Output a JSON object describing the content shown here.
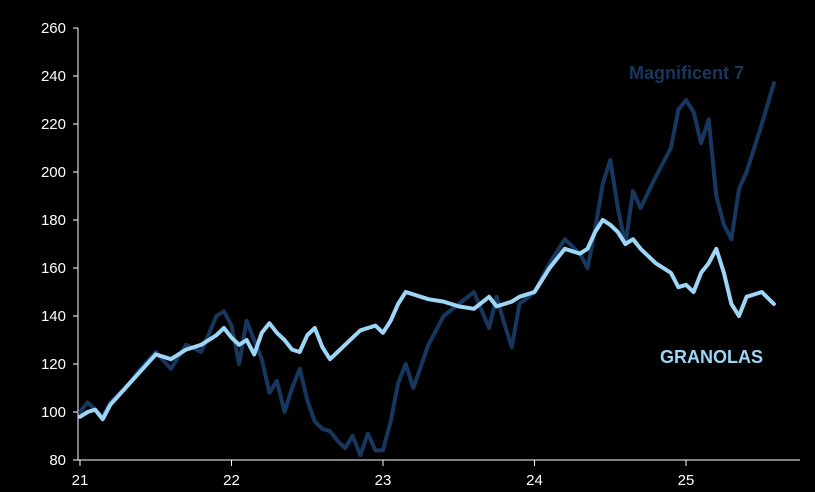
{
  "chart_data": {
    "type": "line",
    "grid": false,
    "legend": "inline labels",
    "ylim": [
      80,
      260
    ],
    "yticks": [
      80,
      100,
      120,
      140,
      160,
      180,
      200,
      220,
      240,
      260
    ],
    "xticks": [
      "21",
      "22",
      "23",
      "24",
      "25"
    ],
    "xlim": [
      2021.0,
      2025.8
    ],
    "series": [
      {
        "name": "Magnificent 7",
        "color": "#17375e",
        "x": [
          2021.0,
          2021.05,
          2021.1,
          2021.15,
          2021.2,
          2021.3,
          2021.4,
          2021.5,
          2021.6,
          2021.7,
          2021.8,
          2021.9,
          2021.95,
          2022.0,
          2022.05,
          2022.1,
          2022.15,
          2022.2,
          2022.25,
          2022.3,
          2022.35,
          2022.4,
          2022.45,
          2022.5,
          2022.55,
          2022.6,
          2022.65,
          2022.7,
          2022.75,
          2022.8,
          2022.85,
          2022.9,
          2022.95,
          2023.0,
          2023.05,
          2023.1,
          2023.15,
          2023.2,
          2023.3,
          2023.4,
          2023.5,
          2023.6,
          2023.7,
          2023.75,
          2023.8,
          2023.85,
          2023.9,
          2024.0,
          2024.1,
          2024.2,
          2024.3,
          2024.35,
          2024.4,
          2024.45,
          2024.5,
          2024.55,
          2024.6,
          2024.65,
          2024.7,
          2024.8,
          2024.9,
          2024.95,
          2025.0,
          2025.05,
          2025.1,
          2025.15,
          2025.2,
          2025.25,
          2025.3,
          2025.35,
          2025.4,
          2025.5,
          2025.58
        ],
        "y": [
          100,
          104,
          101,
          98,
          104,
          110,
          118,
          125,
          118,
          128,
          125,
          140,
          142,
          136,
          120,
          138,
          130,
          122,
          108,
          113,
          100,
          110,
          118,
          105,
          96,
          93,
          92,
          88,
          85,
          90,
          82,
          91,
          84,
          84,
          96,
          112,
          120,
          110,
          128,
          140,
          145,
          150,
          135,
          148,
          137,
          127,
          145,
          150,
          162,
          172,
          166,
          160,
          176,
          195,
          205,
          185,
          170,
          192,
          185,
          198,
          210,
          226,
          230,
          225,
          212,
          222,
          190,
          178,
          172,
          193,
          200,
          220,
          237
        ]
      },
      {
        "name": "GRANOLAS",
        "color": "#9dd6f7",
        "x": [
          2021.0,
          2021.05,
          2021.1,
          2021.15,
          2021.2,
          2021.3,
          2021.4,
          2021.5,
          2021.6,
          2021.7,
          2021.8,
          2021.9,
          2021.95,
          2022.0,
          2022.05,
          2022.1,
          2022.15,
          2022.2,
          2022.25,
          2022.3,
          2022.35,
          2022.4,
          2022.45,
          2022.5,
          2022.55,
          2022.6,
          2022.65,
          2022.7,
          2022.75,
          2022.8,
          2022.85,
          2022.9,
          2022.95,
          2023.0,
          2023.05,
          2023.1,
          2023.15,
          2023.2,
          2023.3,
          2023.4,
          2023.5,
          2023.6,
          2023.7,
          2023.75,
          2023.8,
          2023.85,
          2023.9,
          2024.0,
          2024.1,
          2024.2,
          2024.3,
          2024.35,
          2024.4,
          2024.45,
          2024.5,
          2024.55,
          2024.6,
          2024.65,
          2024.7,
          2024.8,
          2024.9,
          2024.95,
          2025.0,
          2025.05,
          2025.1,
          2025.15,
          2025.2,
          2025.25,
          2025.3,
          2025.35,
          2025.4,
          2025.5,
          2025.58
        ],
        "y": [
          98,
          100,
          101,
          97,
          103,
          110,
          117,
          124,
          122,
          126,
          128,
          132,
          135,
          131,
          128,
          130,
          124,
          133,
          137,
          133,
          130,
          126,
          125,
          132,
          135,
          127,
          122,
          125,
          128,
          131,
          134,
          135,
          136,
          133,
          138,
          145,
          150,
          149,
          147,
          146,
          144,
          143,
          148,
          144,
          145,
          146,
          148,
          150,
          160,
          168,
          166,
          168,
          175,
          180,
          178,
          175,
          170,
          172,
          168,
          162,
          158,
          152,
          153,
          150,
          158,
          162,
          168,
          158,
          145,
          140,
          148,
          150,
          145
        ]
      }
    ]
  }
}
